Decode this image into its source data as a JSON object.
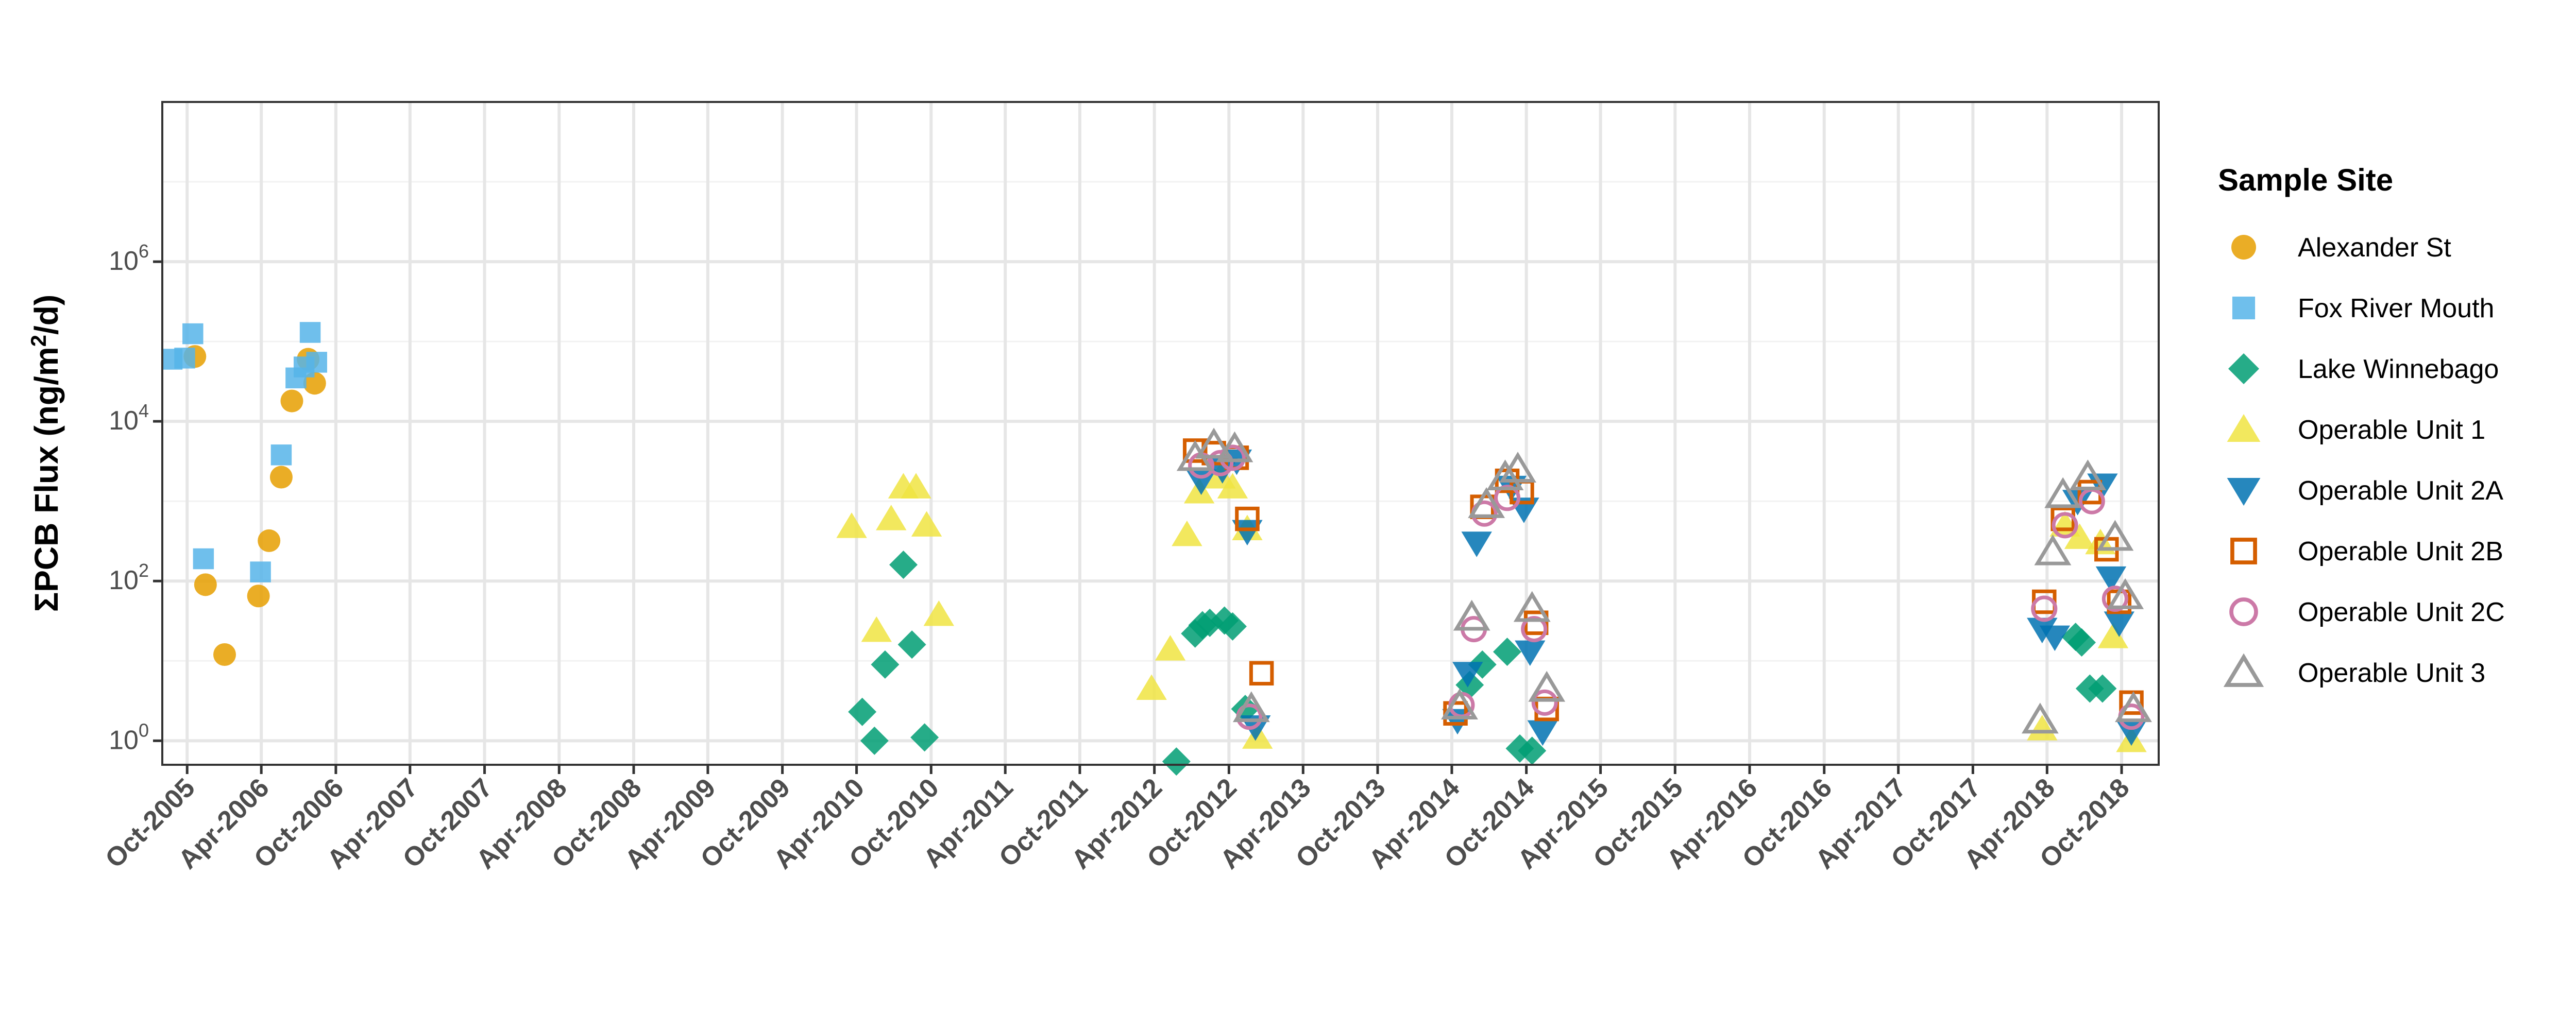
{
  "chart_data": {
    "type": "scatter",
    "title": "",
    "xlabel": "",
    "ylabel_main": "ΣPCB Flux (ng/m",
    "ylabel_sup": "2",
    "ylabel_tail": "/d)",
    "yscale": "log10",
    "ylim": [
      0.5,
      100000000
    ],
    "xlim": [
      "2005-08-01",
      "2018-12-31"
    ],
    "y_ticks": [
      {
        "value": 1,
        "base": "10",
        "exp": "0"
      },
      {
        "value": 100,
        "base": "10",
        "exp": "2"
      },
      {
        "value": 10000,
        "base": "10",
        "exp": "4"
      },
      {
        "value": 1000000,
        "base": "10",
        "exp": "6"
      }
    ],
    "x_ticks": [
      {
        "date": "2005-10-01",
        "label": "Oct-2005"
      },
      {
        "date": "2006-04-01",
        "label": "Apr-2006"
      },
      {
        "date": "2006-10-01",
        "label": "Oct-2006"
      },
      {
        "date": "2007-04-01",
        "label": "Apr-2007"
      },
      {
        "date": "2007-10-01",
        "label": "Oct-2007"
      },
      {
        "date": "2008-04-01",
        "label": "Apr-2008"
      },
      {
        "date": "2008-10-01",
        "label": "Oct-2008"
      },
      {
        "date": "2009-04-01",
        "label": "Apr-2009"
      },
      {
        "date": "2009-10-01",
        "label": "Oct-2009"
      },
      {
        "date": "2010-04-01",
        "label": "Apr-2010"
      },
      {
        "date": "2010-10-01",
        "label": "Oct-2010"
      },
      {
        "date": "2011-04-01",
        "label": "Apr-2011"
      },
      {
        "date": "2011-10-01",
        "label": "Oct-2011"
      },
      {
        "date": "2012-04-01",
        "label": "Apr-2012"
      },
      {
        "date": "2012-10-01",
        "label": "Oct-2012"
      },
      {
        "date": "2013-04-01",
        "label": "Apr-2013"
      },
      {
        "date": "2013-10-01",
        "label": "Oct-2013"
      },
      {
        "date": "2014-04-01",
        "label": "Apr-2014"
      },
      {
        "date": "2014-10-01",
        "label": "Oct-2014"
      },
      {
        "date": "2015-04-01",
        "label": "Apr-2015"
      },
      {
        "date": "2015-10-01",
        "label": "Oct-2015"
      },
      {
        "date": "2016-04-01",
        "label": "Apr-2016"
      },
      {
        "date": "2016-10-01",
        "label": "Oct-2016"
      },
      {
        "date": "2017-04-01",
        "label": "Apr-2017"
      },
      {
        "date": "2017-10-01",
        "label": "Oct-2017"
      },
      {
        "date": "2018-04-01",
        "label": "Apr-2018"
      },
      {
        "date": "2018-10-01",
        "label": "Oct-2018"
      }
    ],
    "grid": true,
    "legend_title": "Sample Site",
    "legend_position": "right",
    "series": [
      {
        "name": "Alexander St",
        "shape": "circle-filled",
        "color": "#E69F00",
        "points": [
          {
            "x": "2005-10-20",
            "y": 65000
          },
          {
            "x": "2005-11-15",
            "y": 90
          },
          {
            "x": "2006-01-01",
            "y": 12
          },
          {
            "x": "2006-03-25",
            "y": 65
          },
          {
            "x": "2006-04-20",
            "y": 320
          },
          {
            "x": "2006-05-20",
            "y": 2000
          },
          {
            "x": "2006-06-15",
            "y": 18000
          },
          {
            "x": "2006-07-25",
            "y": 60000
          },
          {
            "x": "2006-08-10",
            "y": 30000
          }
        ]
      },
      {
        "name": "Fox River Mouth",
        "shape": "square-filled",
        "color": "#56B4E9",
        "points": [
          {
            "x": "2005-08-25",
            "y": 60000
          },
          {
            "x": "2005-09-25",
            "y": 62000
          },
          {
            "x": "2005-10-15",
            "y": 125000
          },
          {
            "x": "2005-11-10",
            "y": 190
          },
          {
            "x": "2006-03-30",
            "y": 130
          },
          {
            "x": "2006-05-20",
            "y": 3800
          },
          {
            "x": "2006-06-25",
            "y": 35000
          },
          {
            "x": "2006-07-15",
            "y": 48000
          },
          {
            "x": "2006-07-30",
            "y": 130000
          },
          {
            "x": "2006-08-15",
            "y": 55000
          }
        ]
      },
      {
        "name": "Lake Winnebago",
        "shape": "diamond-filled",
        "color": "#009E73",
        "points": [
          {
            "x": "2010-04-15",
            "y": 2.3
          },
          {
            "x": "2010-05-15",
            "y": 1.0
          },
          {
            "x": "2010-06-10",
            "y": 9
          },
          {
            "x": "2010-07-25",
            "y": 160
          },
          {
            "x": "2010-08-15",
            "y": 16
          },
          {
            "x": "2010-09-15",
            "y": 1.1
          },
          {
            "x": "2012-05-25",
            "y": 0.55
          },
          {
            "x": "2012-07-10",
            "y": 22
          },
          {
            "x": "2012-07-28",
            "y": 28
          },
          {
            "x": "2012-08-15",
            "y": 30
          },
          {
            "x": "2012-09-20",
            "y": 32
          },
          {
            "x": "2012-10-10",
            "y": 27
          },
          {
            "x": "2012-11-10",
            "y": 2.5
          },
          {
            "x": "2014-05-15",
            "y": 5
          },
          {
            "x": "2014-06-15",
            "y": 9
          },
          {
            "x": "2014-08-15",
            "y": 13
          },
          {
            "x": "2014-09-15",
            "y": 0.8
          },
          {
            "x": "2014-10-15",
            "y": 0.75
          },
          {
            "x": "2018-06-10",
            "y": 20
          },
          {
            "x": "2018-06-25",
            "y": 17
          },
          {
            "x": "2018-07-15",
            "y": 4.5
          },
          {
            "x": "2018-08-15",
            "y": 4.5
          }
        ]
      },
      {
        "name": "Operable Unit 1",
        "shape": "triangle-up-filled",
        "color": "#F0E442",
        "points": [
          {
            "x": "2010-03-20",
            "y": 480
          },
          {
            "x": "2010-05-20",
            "y": 24
          },
          {
            "x": "2010-06-25",
            "y": 600
          },
          {
            "x": "2010-07-25",
            "y": 1500
          },
          {
            "x": "2010-08-25",
            "y": 1500
          },
          {
            "x": "2010-09-20",
            "y": 500
          },
          {
            "x": "2010-10-20",
            "y": 38
          },
          {
            "x": "2012-03-25",
            "y": 4.5
          },
          {
            "x": "2012-05-10",
            "y": 14
          },
          {
            "x": "2012-06-20",
            "y": 380
          },
          {
            "x": "2012-07-20",
            "y": 1300
          },
          {
            "x": "2012-09-10",
            "y": 2000
          },
          {
            "x": "2012-10-10",
            "y": 1500
          },
          {
            "x": "2012-11-15",
            "y": 450
          },
          {
            "x": "2012-12-10",
            "y": 1.1
          },
          {
            "x": "2018-03-20",
            "y": 1.4
          },
          {
            "x": "2018-05-15",
            "y": 500
          },
          {
            "x": "2018-06-20",
            "y": 350
          },
          {
            "x": "2018-08-10",
            "y": 300
          },
          {
            "x": "2018-09-10",
            "y": 20
          },
          {
            "x": "2018-10-25",
            "y": 1.0
          }
        ]
      },
      {
        "name": "Operable Unit 2A",
        "shape": "triangle-down-filled",
        "color": "#0072B2",
        "points": [
          {
            "x": "2012-07-25",
            "y": 1800
          },
          {
            "x": "2012-09-15",
            "y": 2500
          },
          {
            "x": "2012-10-20",
            "y": 3200
          },
          {
            "x": "2012-11-15",
            "y": 420
          },
          {
            "x": "2012-12-05",
            "y": 1.5
          },
          {
            "x": "2014-04-15",
            "y": 1.8
          },
          {
            "x": "2014-05-10",
            "y": 7
          },
          {
            "x": "2014-06-01",
            "y": 300
          },
          {
            "x": "2014-08-25",
            "y": 1500
          },
          {
            "x": "2014-09-25",
            "y": 800
          },
          {
            "x": "2014-10-10",
            "y": 13
          },
          {
            "x": "2014-11-10",
            "y": 1.3
          },
          {
            "x": "2018-03-20",
            "y": 25
          },
          {
            "x": "2018-04-20",
            "y": 20
          },
          {
            "x": "2018-06-15",
            "y": 1000
          },
          {
            "x": "2018-08-15",
            "y": 1600
          },
          {
            "x": "2018-09-05",
            "y": 110
          },
          {
            "x": "2018-09-25",
            "y": 30
          },
          {
            "x": "2018-10-25",
            "y": 1.3
          }
        ]
      },
      {
        "name": "Operable Unit 2B",
        "shape": "square-open",
        "color": "#D55E00",
        "points": [
          {
            "x": "2012-07-10",
            "y": 4300
          },
          {
            "x": "2012-08-25",
            "y": 4000
          },
          {
            "x": "2012-10-20",
            "y": 3500
          },
          {
            "x": "2012-11-15",
            "y": 600
          },
          {
            "x": "2012-12-20",
            "y": 7
          },
          {
            "x": "2014-04-10",
            "y": 2.2
          },
          {
            "x": "2014-06-15",
            "y": 850
          },
          {
            "x": "2014-08-15",
            "y": 1800
          },
          {
            "x": "2014-09-20",
            "y": 1300
          },
          {
            "x": "2014-10-25",
            "y": 30
          },
          {
            "x": "2014-11-20",
            "y": 2.5
          },
          {
            "x": "2018-03-25",
            "y": 55
          },
          {
            "x": "2018-05-10",
            "y": 600
          },
          {
            "x": "2018-07-15",
            "y": 1300
          },
          {
            "x": "2018-08-25",
            "y": 250
          },
          {
            "x": "2018-09-25",
            "y": 55
          },
          {
            "x": "2018-10-25",
            "y": 3
          }
        ]
      },
      {
        "name": "Operable Unit 2C",
        "shape": "circle-open",
        "color": "#CC79A7",
        "points": [
          {
            "x": "2012-07-25",
            "y": 2800
          },
          {
            "x": "2012-09-10",
            "y": 3000
          },
          {
            "x": "2012-10-10",
            "y": 3500
          },
          {
            "x": "2012-11-20",
            "y": 2
          },
          {
            "x": "2014-04-25",
            "y": 2.8
          },
          {
            "x": "2014-05-25",
            "y": 25
          },
          {
            "x": "2014-06-20",
            "y": 700
          },
          {
            "x": "2014-08-15",
            "y": 1100
          },
          {
            "x": "2014-10-20",
            "y": 25
          },
          {
            "x": "2014-11-15",
            "y": 3
          },
          {
            "x": "2018-03-25",
            "y": 45
          },
          {
            "x": "2018-05-15",
            "y": 500
          },
          {
            "x": "2018-07-20",
            "y": 1000
          },
          {
            "x": "2018-09-15",
            "y": 60
          },
          {
            "x": "2018-10-25",
            "y": 2
          }
        ]
      },
      {
        "name": "Operable Unit 3",
        "shape": "triangle-up-open",
        "color": "#999999",
        "points": [
          {
            "x": "2012-07-10",
            "y": 3500
          },
          {
            "x": "2012-08-25",
            "y": 5000
          },
          {
            "x": "2012-10-15",
            "y": 4500
          },
          {
            "x": "2012-11-25",
            "y": 2.5
          },
          {
            "x": "2014-04-20",
            "y": 2.7
          },
          {
            "x": "2014-05-20",
            "y": 35
          },
          {
            "x": "2014-06-25",
            "y": 900
          },
          {
            "x": "2014-08-10",
            "y": 2000
          },
          {
            "x": "2014-09-10",
            "y": 2500
          },
          {
            "x": "2014-10-15",
            "y": 45
          },
          {
            "x": "2014-11-20",
            "y": 4.5
          },
          {
            "x": "2018-03-15",
            "y": 1.8
          },
          {
            "x": "2018-04-15",
            "y": 230
          },
          {
            "x": "2018-05-10",
            "y": 1200
          },
          {
            "x": "2018-07-10",
            "y": 2000
          },
          {
            "x": "2018-09-15",
            "y": 350
          },
          {
            "x": "2018-10-10",
            "y": 65
          },
          {
            "x": "2018-10-30",
            "y": 2.5
          }
        ]
      }
    ]
  }
}
